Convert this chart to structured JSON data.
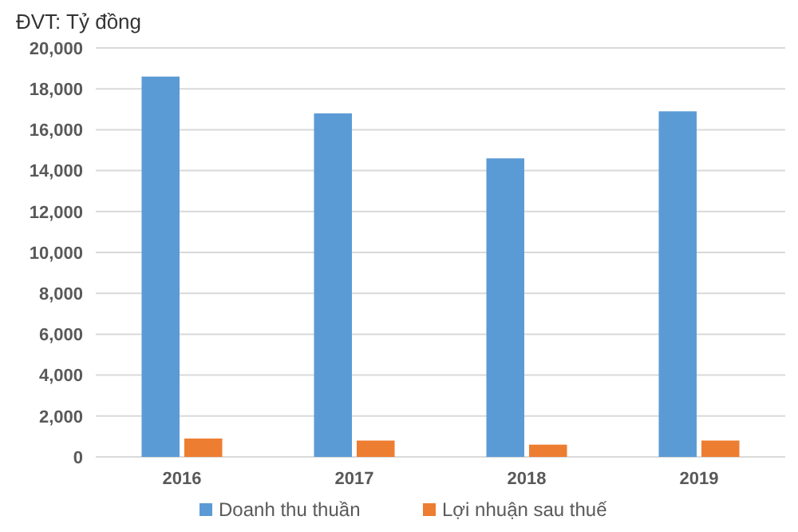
{
  "chart_data": {
    "type": "bar",
    "ylabel": "ĐVT: Tỷ đồng",
    "categories": [
      "2016",
      "2017",
      "2018",
      "2019"
    ],
    "series": [
      {
        "name": "Doanh thu thuần",
        "color": "#5b9bd5",
        "values": [
          18600,
          16800,
          14600,
          16900
        ]
      },
      {
        "name": "Lợi nhuận sau thuế",
        "color": "#ed7d31",
        "values": [
          900,
          800,
          600,
          800
        ]
      }
    ],
    "ylim": [
      0,
      20000
    ],
    "yticks": [
      {
        "value": 0,
        "label": "0"
      },
      {
        "value": 2000,
        "label": "2,000"
      },
      {
        "value": 4000,
        "label": "4,000"
      },
      {
        "value": 6000,
        "label": "6,000"
      },
      {
        "value": 8000,
        "label": "8,000"
      },
      {
        "value": 10000,
        "label": "10,000"
      },
      {
        "value": 12000,
        "label": "12,000"
      },
      {
        "value": 14000,
        "label": "14,000"
      },
      {
        "value": 16000,
        "label": "16,000"
      },
      {
        "value": 18000,
        "label": "18,000"
      },
      {
        "value": 20000,
        "label": "20,000"
      }
    ],
    "grid": "y",
    "legend": "bottom"
  }
}
